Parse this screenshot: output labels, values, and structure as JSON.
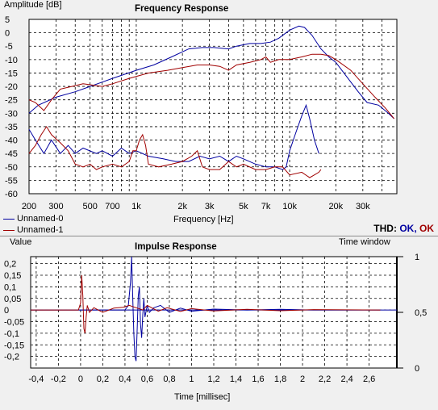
{
  "chart_data": [
    {
      "type": "line",
      "title": "Frequency Response",
      "ylabel": "Amplitude [dB]",
      "xlabel": "Frequency [Hz]",
      "xscale": "log",
      "xlim": [
        200,
        50000
      ],
      "ylim": [
        -60,
        5
      ],
      "grid": true,
      "x_ticks": [
        {
          "v": 200,
          "label": "200"
        },
        {
          "v": 300,
          "label": "300"
        },
        {
          "v": 500,
          "label": "500"
        },
        {
          "v": 700,
          "label": "700"
        },
        {
          "v": 1000,
          "label": "1k"
        },
        {
          "v": 2000,
          "label": "2k"
        },
        {
          "v": 3000,
          "label": "3k"
        },
        {
          "v": 5000,
          "label": "5k"
        },
        {
          "v": 7000,
          "label": "7k"
        },
        {
          "v": 10000,
          "label": "10k"
        },
        {
          "v": 20000,
          "label": "20k"
        },
        {
          "v": 30000,
          "label": "30k"
        }
      ],
      "x_minor": [
        400,
        600,
        800,
        900,
        4000,
        6000,
        8000,
        9000,
        40000,
        50000
      ],
      "y_ticks": [
        5,
        0,
        -5,
        -10,
        -15,
        -20,
        -25,
        -30,
        -35,
        -40,
        -45,
        -50,
        -55,
        -60
      ],
      "series": [
        {
          "name": "Unnamed-0",
          "color": "#0000a0",
          "role": "response",
          "points": [
            [
              200,
              -30
            ],
            [
              230,
              -27
            ],
            [
              300,
              -24
            ],
            [
              400,
              -22
            ],
            [
              500,
              -20
            ],
            [
              700,
              -17
            ],
            [
              1000,
              -14
            ],
            [
              1300,
              -12
            ],
            [
              1700,
              -9
            ],
            [
              2200,
              -6
            ],
            [
              2700,
              -5.5
            ],
            [
              3200,
              -5.5
            ],
            [
              4000,
              -6
            ],
            [
              4500,
              -5
            ],
            [
              5500,
              -4
            ],
            [
              6500,
              -4
            ],
            [
              7500,
              -3.5
            ],
            [
              8500,
              -2
            ],
            [
              10000,
              1
            ],
            [
              11500,
              2.5
            ],
            [
              12500,
              2
            ],
            [
              14000,
              -1
            ],
            [
              16000,
              -6
            ],
            [
              18000,
              -9
            ],
            [
              20000,
              -11
            ],
            [
              24000,
              -17
            ],
            [
              28000,
              -22
            ],
            [
              32000,
              -26
            ],
            [
              38000,
              -27
            ],
            [
              44000,
              -30
            ],
            [
              48000,
              -32
            ]
          ]
        },
        {
          "name": "Unnamed-1",
          "color": "#a00000",
          "role": "response",
          "points": [
            [
              200,
              -25
            ],
            [
              220,
              -26
            ],
            [
              250,
              -29
            ],
            [
              280,
              -25
            ],
            [
              320,
              -21
            ],
            [
              380,
              -20
            ],
            [
              450,
              -19
            ],
            [
              600,
              -20
            ],
            [
              700,
              -19
            ],
            [
              900,
              -17
            ],
            [
              1200,
              -15
            ],
            [
              1600,
              -14
            ],
            [
              2000,
              -13
            ],
            [
              2500,
              -12
            ],
            [
              3000,
              -12
            ],
            [
              3500,
              -12.5
            ],
            [
              4000,
              -14
            ],
            [
              4500,
              -12
            ],
            [
              5500,
              -11
            ],
            [
              6500,
              -10
            ],
            [
              7000,
              -9
            ],
            [
              7500,
              -11
            ],
            [
              8500,
              -10
            ],
            [
              10000,
              -10
            ],
            [
              12000,
              -9
            ],
            [
              14000,
              -8
            ],
            [
              16000,
              -8
            ],
            [
              18000,
              -8.5
            ],
            [
              20000,
              -10
            ],
            [
              25000,
              -14
            ],
            [
              30000,
              -19
            ],
            [
              36000,
              -24
            ],
            [
              42000,
              -28
            ],
            [
              48000,
              -32
            ]
          ]
        },
        {
          "name": "Unnamed-0",
          "color": "#0000a0",
          "role": "thd",
          "points": [
            [
              200,
              -36
            ],
            [
              220,
              -40
            ],
            [
              250,
              -45
            ],
            [
              280,
              -40
            ],
            [
              320,
              -45
            ],
            [
              360,
              -42
            ],
            [
              400,
              -45
            ],
            [
              450,
              -43
            ],
            [
              550,
              -45
            ],
            [
              600,
              -44
            ],
            [
              700,
              -46
            ],
            [
              800,
              -43
            ],
            [
              900,
              -45
            ],
            [
              1000,
              -44
            ],
            [
              1200,
              -46
            ],
            [
              1500,
              -47
            ],
            [
              1800,
              -48
            ],
            [
              2200,
              -48
            ],
            [
              2600,
              -46
            ],
            [
              3000,
              -47
            ],
            [
              3500,
              -46
            ],
            [
              4000,
              -48
            ],
            [
              4500,
              -46
            ],
            [
              5000,
              -47
            ],
            [
              6000,
              -49
            ],
            [
              7000,
              -50
            ],
            [
              8000,
              -50
            ],
            [
              9000,
              -51
            ],
            [
              9500,
              -50
            ],
            [
              10000,
              -44
            ],
            [
              11000,
              -37
            ],
            [
              12000,
              -31
            ],
            [
              12800,
              -27
            ],
            [
              13500,
              -32
            ],
            [
              14500,
              -40
            ],
            [
              15500,
              -45
            ]
          ]
        },
        {
          "name": "Unnamed-1",
          "color": "#a00000",
          "role": "thd",
          "points": [
            [
              200,
              -45
            ],
            [
              220,
              -42
            ],
            [
              240,
              -38
            ],
            [
              260,
              -35
            ],
            [
              280,
              -38
            ],
            [
              320,
              -41
            ],
            [
              360,
              -44
            ],
            [
              400,
              -49
            ],
            [
              450,
              -50
            ],
            [
              500,
              -49
            ],
            [
              550,
              -51
            ],
            [
              600,
              -50
            ],
            [
              700,
              -49
            ],
            [
              800,
              -50
            ],
            [
              900,
              -48
            ],
            [
              950,
              -44
            ],
            [
              1000,
              -44
            ],
            [
              1050,
              -40
            ],
            [
              1100,
              -38
            ],
            [
              1150,
              -42
            ],
            [
              1200,
              -49
            ],
            [
              1400,
              -50
            ],
            [
              1700,
              -49
            ],
            [
              2000,
              -48
            ],
            [
              2300,
              -46
            ],
            [
              2500,
              -44
            ],
            [
              2700,
              -50
            ],
            [
              3000,
              -51
            ],
            [
              3500,
              -51
            ],
            [
              4000,
              -48
            ],
            [
              4500,
              -50
            ],
            [
              5000,
              -49
            ],
            [
              6000,
              -51
            ],
            [
              7000,
              -51
            ],
            [
              8000,
              -50
            ],
            [
              9000,
              -50
            ],
            [
              10000,
              -53
            ],
            [
              12000,
              -52
            ],
            [
              13500,
              -54
            ],
            [
              14500,
              -53
            ],
            [
              15500,
              -52
            ],
            [
              16000,
              -51
            ]
          ]
        }
      ],
      "legend": [
        "Unnamed-0",
        "Unnamed-1"
      ],
      "legend_placement": "bottom-left"
    },
    {
      "type": "line",
      "title": "Impulse Response",
      "ylabel": "Value",
      "y2label": "Time window",
      "xlabel": "Time [millisec]",
      "xlim": [
        -0.45,
        2.85
      ],
      "ylim": [
        -0.25,
        0.23
      ],
      "y2lim": [
        0,
        1
      ],
      "grid": true,
      "x_ticks": [
        -0.4,
        -0.2,
        0,
        0.2,
        0.4,
        0.6,
        0.8,
        1,
        1.2,
        1.4,
        1.6,
        1.8,
        2,
        2.2,
        2.4,
        2.6
      ],
      "x_tick_labels": [
        "-0,4",
        "-0,2",
        "0",
        "0,2",
        "0,4",
        "0,6",
        "0,8",
        "1",
        "1,2",
        "1,4",
        "1,6",
        "1,8",
        "2",
        "2,2",
        "2,4",
        "2,6"
      ],
      "y_ticks": [
        0.2,
        0.15,
        0.1,
        0.05,
        0,
        -0.05,
        -0.1,
        -0.15,
        -0.2
      ],
      "y_tick_labels": [
        "0,2",
        "0,15",
        "0,1",
        "0,05",
        "0",
        "-0,05",
        "-0,1",
        "-0,15",
        "-0,2"
      ],
      "y2_ticks": [
        1,
        0.5,
        0
      ],
      "y2_tick_labels": [
        "1",
        "0,5",
        "0"
      ],
      "time_window_color": "#0000a0",
      "series": [
        {
          "name": "Unnamed-0",
          "color": "#0000a0",
          "points": [
            [
              -0.45,
              0
            ],
            [
              0.4,
              0
            ],
            [
              0.43,
              0.02
            ],
            [
              0.45,
              0.12
            ],
            [
              0.46,
              0.23
            ],
            [
              0.47,
              0.05
            ],
            [
              0.48,
              -0.1
            ],
            [
              0.49,
              -0.2
            ],
            [
              0.5,
              -0.22
            ],
            [
              0.51,
              -0.08
            ],
            [
              0.52,
              0.06
            ],
            [
              0.53,
              0.1
            ],
            [
              0.54,
              -0.06
            ],
            [
              0.55,
              -0.12
            ],
            [
              0.56,
              -0.02
            ],
            [
              0.57,
              0.05
            ],
            [
              0.58,
              -0.03
            ],
            [
              0.6,
              0.02
            ],
            [
              0.62,
              -0.01
            ],
            [
              0.66,
              0.01
            ],
            [
              0.72,
              0.02
            ],
            [
              0.8,
              -0.01
            ],
            [
              0.9,
              0.008
            ],
            [
              1,
              -0.005
            ],
            [
              1.2,
              0.004
            ],
            [
              1.5,
              0
            ],
            [
              1.8,
              0.003
            ],
            [
              2.1,
              0
            ],
            [
              2.7,
              0
            ]
          ]
        },
        {
          "name": "Unnamed-1",
          "color": "#a00000",
          "points": [
            [
              -0.45,
              0
            ],
            [
              -0.02,
              0
            ],
            [
              0,
              0.03
            ],
            [
              0.01,
              0.15
            ],
            [
              0.02,
              0.06
            ],
            [
              0.03,
              -0.08
            ],
            [
              0.04,
              -0.1
            ],
            [
              0.05,
              -0.03
            ],
            [
              0.06,
              0.02
            ],
            [
              0.08,
              -0.01
            ],
            [
              0.12,
              0.01
            ],
            [
              0.2,
              -0.01
            ],
            [
              0.3,
              0.008
            ],
            [
              0.38,
              0.012
            ],
            [
              0.44,
              0.02
            ],
            [
              0.5,
              0.01
            ],
            [
              0.56,
              0
            ],
            [
              0.6,
              0.02
            ],
            [
              0.7,
              -0.005
            ],
            [
              0.78,
              0.01
            ],
            [
              0.9,
              -0.006
            ],
            [
              1,
              0.006
            ],
            [
              1.2,
              -0.004
            ],
            [
              1.5,
              0.003
            ],
            [
              1.8,
              -0.003
            ],
            [
              2.1,
              0.002
            ],
            [
              2.7,
              0
            ]
          ]
        }
      ]
    }
  ],
  "thd": {
    "label": "THD:",
    "status_a": "OK,",
    "status_b": "OK",
    "color_a": "#0000a0",
    "color_b": "#a00000"
  }
}
